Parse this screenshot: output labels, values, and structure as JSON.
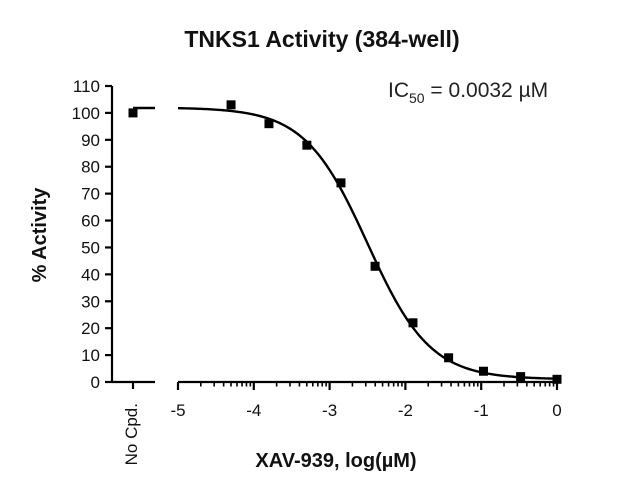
{
  "chart_data": {
    "type": "scatter",
    "title": "TNKS1 Activity (384-well)",
    "xlabel": "XAV-939, log(µM)",
    "ylabel": "% Activity",
    "annotation": {
      "prefix": "IC",
      "subscript": "50",
      "suffix": " = 0.0032 µM"
    },
    "control_label": "No Cpd.",
    "control_value": 100,
    "xlim": [
      -5,
      0
    ],
    "ylim": [
      0,
      110
    ],
    "x_ticks": [
      -5,
      -4,
      -3,
      -2,
      -1,
      0
    ],
    "x_tick_labels": [
      "-5",
      "-4",
      "-3",
      "-2",
      "-1",
      "0"
    ],
    "y_ticks": [
      0,
      10,
      20,
      30,
      40,
      50,
      60,
      70,
      80,
      90,
      100,
      110
    ],
    "y_tick_labels": [
      "0",
      "10",
      "20",
      "30",
      "40",
      "50",
      "60",
      "70",
      "80",
      "90",
      "100",
      "110"
    ],
    "series": [
      {
        "x": [
          -4.3,
          -3.8,
          -3.3,
          -2.85,
          -2.4,
          -1.9,
          -1.43,
          -0.97,
          -0.48,
          0.0
        ],
        "y": [
          103,
          96,
          88,
          74,
          43,
          22,
          9,
          4,
          2,
          1
        ]
      }
    ],
    "fit": {
      "top": 102,
      "bottom": 1,
      "log_ic50": -2.5,
      "hill": 1.05,
      "x_start": -5,
      "x_end": 0
    },
    "grid": false,
    "colors": {
      "points": "#000000",
      "line": "#000000"
    }
  }
}
